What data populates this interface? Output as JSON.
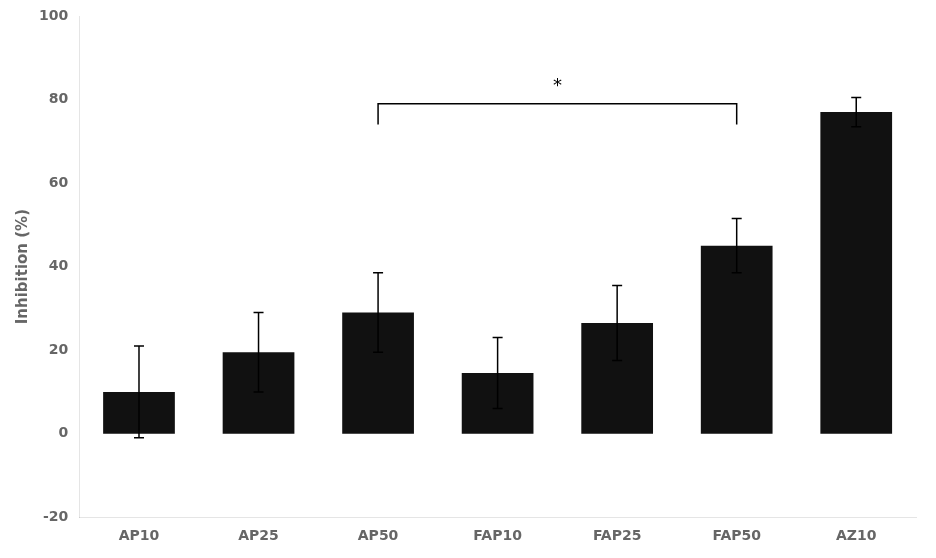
{
  "chart_data": {
    "type": "bar",
    "categories": [
      "AP10",
      "AP25",
      "AP50",
      "FAP10",
      "FAP25",
      "FAP50",
      "AZ10"
    ],
    "values": [
      10.0,
      19.5,
      29.0,
      14.5,
      26.5,
      45.0,
      77.0
    ],
    "errors": [
      11.0,
      9.5,
      9.5,
      8.5,
      9.0,
      6.5,
      3.5
    ],
    "color": "#111111",
    "ylabel": "Inhibition (%)",
    "ylim": [
      -20,
      100
    ],
    "yticks": [
      -20,
      0,
      20,
      40,
      60,
      80,
      100
    ],
    "grid": false,
    "annotations": [
      {
        "text": "*",
        "from": "AP50",
        "to": "FAP50",
        "y": 79,
        "tip": 74,
        "text_y": 81
      }
    ]
  }
}
